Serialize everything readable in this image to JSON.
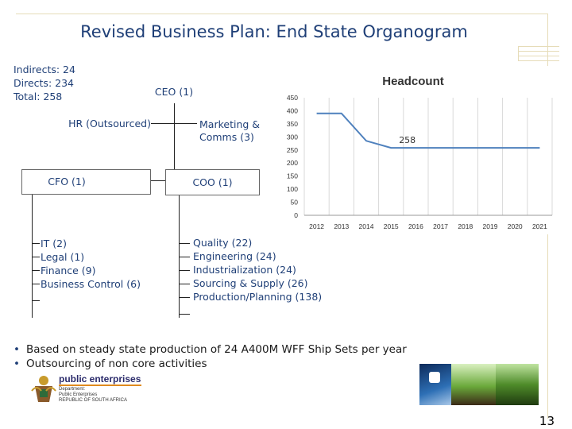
{
  "title": "Revised Business Plan: End State Organogram",
  "stats": [
    "Indirects: 24",
    "Directs: 234",
    "Total: 258"
  ],
  "org": {
    "ceo": "CEO (1)",
    "hr": "HR (Outsourced)",
    "marketing": [
      "Marketing &",
      "Comms (3)"
    ],
    "cfo": "CFO (1)",
    "coo": "COO (1)",
    "cfo_units": [
      "IT (2)",
      "Legal (1)",
      "Finance (9)",
      "Business Control (6)"
    ],
    "coo_units": [
      "Quality (22)",
      "Engineering (24)",
      "Industrialization (24)",
      "Sourcing & Supply (26)",
      "Production/Planning (138)"
    ]
  },
  "bullets": [
    "Based on steady state production of 24 A400M WFF Ship Sets per year",
    "Outsourcing of non core activities"
  ],
  "logo": {
    "main": "public enterprises",
    "line1": "Department:",
    "line2": "Public Enterprises",
    "line3": "REPUBLIC OF SOUTH AFRICA"
  },
  "page_number": "13",
  "chart_data": {
    "type": "line",
    "title": "Headcount",
    "x": [
      "2012",
      "2013",
      "2014",
      "2015",
      "2016",
      "2017",
      "2018",
      "2019",
      "2020",
      "2021"
    ],
    "series": [
      {
        "values": [
          390,
          390,
          285,
          258,
          258,
          258,
          258,
          258,
          258,
          258
        ],
        "color": "#4f81bd"
      }
    ],
    "yticks": [
      0,
      50,
      100,
      150,
      200,
      250,
      300,
      350,
      400,
      450
    ],
    "ylim": [
      0,
      450
    ],
    "annotation": "258",
    "grid": "vertical"
  }
}
